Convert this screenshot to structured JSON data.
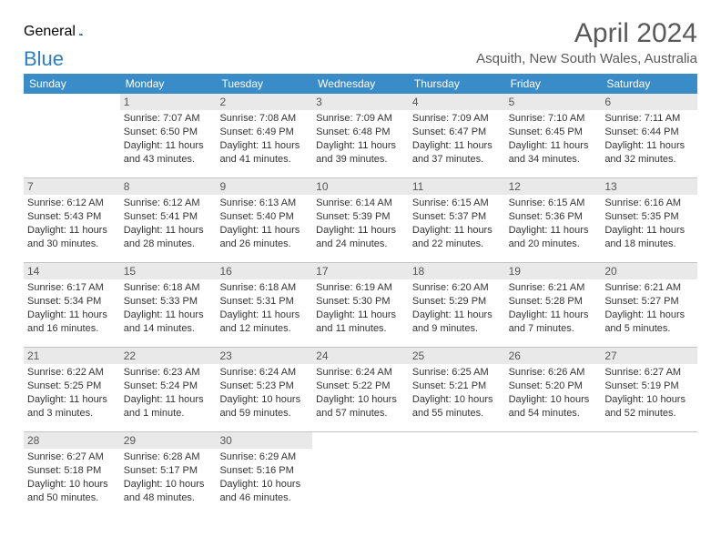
{
  "logo": {
    "text1": "General",
    "text2": "Blue"
  },
  "title": {
    "month": "April 2024",
    "location": "Asquith, New South Wales, Australia"
  },
  "colors": {
    "header_bg": "#3a8cc9",
    "daynum_bg": "#e9e9e9",
    "text_gray": "#5a5a5a",
    "logo_blue": "#2a7fc5",
    "border": "#c4c4c4"
  },
  "weekdays": [
    "Sunday",
    "Monday",
    "Tuesday",
    "Wednesday",
    "Thursday",
    "Friday",
    "Saturday"
  ],
  "weeks": [
    [
      null,
      {
        "n": "1",
        "sr": "Sunrise: 7:07 AM",
        "ss": "Sunset: 6:50 PM",
        "d1": "Daylight: 11 hours",
        "d2": "and 43 minutes."
      },
      {
        "n": "2",
        "sr": "Sunrise: 7:08 AM",
        "ss": "Sunset: 6:49 PM",
        "d1": "Daylight: 11 hours",
        "d2": "and 41 minutes."
      },
      {
        "n": "3",
        "sr": "Sunrise: 7:09 AM",
        "ss": "Sunset: 6:48 PM",
        "d1": "Daylight: 11 hours",
        "d2": "and 39 minutes."
      },
      {
        "n": "4",
        "sr": "Sunrise: 7:09 AM",
        "ss": "Sunset: 6:47 PM",
        "d1": "Daylight: 11 hours",
        "d2": "and 37 minutes."
      },
      {
        "n": "5",
        "sr": "Sunrise: 7:10 AM",
        "ss": "Sunset: 6:45 PM",
        "d1": "Daylight: 11 hours",
        "d2": "and 34 minutes."
      },
      {
        "n": "6",
        "sr": "Sunrise: 7:11 AM",
        "ss": "Sunset: 6:44 PM",
        "d1": "Daylight: 11 hours",
        "d2": "and 32 minutes."
      }
    ],
    [
      {
        "n": "7",
        "sr": "Sunrise: 6:12 AM",
        "ss": "Sunset: 5:43 PM",
        "d1": "Daylight: 11 hours",
        "d2": "and 30 minutes."
      },
      {
        "n": "8",
        "sr": "Sunrise: 6:12 AM",
        "ss": "Sunset: 5:41 PM",
        "d1": "Daylight: 11 hours",
        "d2": "and 28 minutes."
      },
      {
        "n": "9",
        "sr": "Sunrise: 6:13 AM",
        "ss": "Sunset: 5:40 PM",
        "d1": "Daylight: 11 hours",
        "d2": "and 26 minutes."
      },
      {
        "n": "10",
        "sr": "Sunrise: 6:14 AM",
        "ss": "Sunset: 5:39 PM",
        "d1": "Daylight: 11 hours",
        "d2": "and 24 minutes."
      },
      {
        "n": "11",
        "sr": "Sunrise: 6:15 AM",
        "ss": "Sunset: 5:37 PM",
        "d1": "Daylight: 11 hours",
        "d2": "and 22 minutes."
      },
      {
        "n": "12",
        "sr": "Sunrise: 6:15 AM",
        "ss": "Sunset: 5:36 PM",
        "d1": "Daylight: 11 hours",
        "d2": "and 20 minutes."
      },
      {
        "n": "13",
        "sr": "Sunrise: 6:16 AM",
        "ss": "Sunset: 5:35 PM",
        "d1": "Daylight: 11 hours",
        "d2": "and 18 minutes."
      }
    ],
    [
      {
        "n": "14",
        "sr": "Sunrise: 6:17 AM",
        "ss": "Sunset: 5:34 PM",
        "d1": "Daylight: 11 hours",
        "d2": "and 16 minutes."
      },
      {
        "n": "15",
        "sr": "Sunrise: 6:18 AM",
        "ss": "Sunset: 5:33 PM",
        "d1": "Daylight: 11 hours",
        "d2": "and 14 minutes."
      },
      {
        "n": "16",
        "sr": "Sunrise: 6:18 AM",
        "ss": "Sunset: 5:31 PM",
        "d1": "Daylight: 11 hours",
        "d2": "and 12 minutes."
      },
      {
        "n": "17",
        "sr": "Sunrise: 6:19 AM",
        "ss": "Sunset: 5:30 PM",
        "d1": "Daylight: 11 hours",
        "d2": "and 11 minutes."
      },
      {
        "n": "18",
        "sr": "Sunrise: 6:20 AM",
        "ss": "Sunset: 5:29 PM",
        "d1": "Daylight: 11 hours",
        "d2": "and 9 minutes."
      },
      {
        "n": "19",
        "sr": "Sunrise: 6:21 AM",
        "ss": "Sunset: 5:28 PM",
        "d1": "Daylight: 11 hours",
        "d2": "and 7 minutes."
      },
      {
        "n": "20",
        "sr": "Sunrise: 6:21 AM",
        "ss": "Sunset: 5:27 PM",
        "d1": "Daylight: 11 hours",
        "d2": "and 5 minutes."
      }
    ],
    [
      {
        "n": "21",
        "sr": "Sunrise: 6:22 AM",
        "ss": "Sunset: 5:25 PM",
        "d1": "Daylight: 11 hours",
        "d2": "and 3 minutes."
      },
      {
        "n": "22",
        "sr": "Sunrise: 6:23 AM",
        "ss": "Sunset: 5:24 PM",
        "d1": "Daylight: 11 hours",
        "d2": "and 1 minute."
      },
      {
        "n": "23",
        "sr": "Sunrise: 6:24 AM",
        "ss": "Sunset: 5:23 PM",
        "d1": "Daylight: 10 hours",
        "d2": "and 59 minutes."
      },
      {
        "n": "24",
        "sr": "Sunrise: 6:24 AM",
        "ss": "Sunset: 5:22 PM",
        "d1": "Daylight: 10 hours",
        "d2": "and 57 minutes."
      },
      {
        "n": "25",
        "sr": "Sunrise: 6:25 AM",
        "ss": "Sunset: 5:21 PM",
        "d1": "Daylight: 10 hours",
        "d2": "and 55 minutes."
      },
      {
        "n": "26",
        "sr": "Sunrise: 6:26 AM",
        "ss": "Sunset: 5:20 PM",
        "d1": "Daylight: 10 hours",
        "d2": "and 54 minutes."
      },
      {
        "n": "27",
        "sr": "Sunrise: 6:27 AM",
        "ss": "Sunset: 5:19 PM",
        "d1": "Daylight: 10 hours",
        "d2": "and 52 minutes."
      }
    ],
    [
      {
        "n": "28",
        "sr": "Sunrise: 6:27 AM",
        "ss": "Sunset: 5:18 PM",
        "d1": "Daylight: 10 hours",
        "d2": "and 50 minutes."
      },
      {
        "n": "29",
        "sr": "Sunrise: 6:28 AM",
        "ss": "Sunset: 5:17 PM",
        "d1": "Daylight: 10 hours",
        "d2": "and 48 minutes."
      },
      {
        "n": "30",
        "sr": "Sunrise: 6:29 AM",
        "ss": "Sunset: 5:16 PM",
        "d1": "Daylight: 10 hours",
        "d2": "and 46 minutes."
      },
      null,
      null,
      null,
      null
    ]
  ]
}
